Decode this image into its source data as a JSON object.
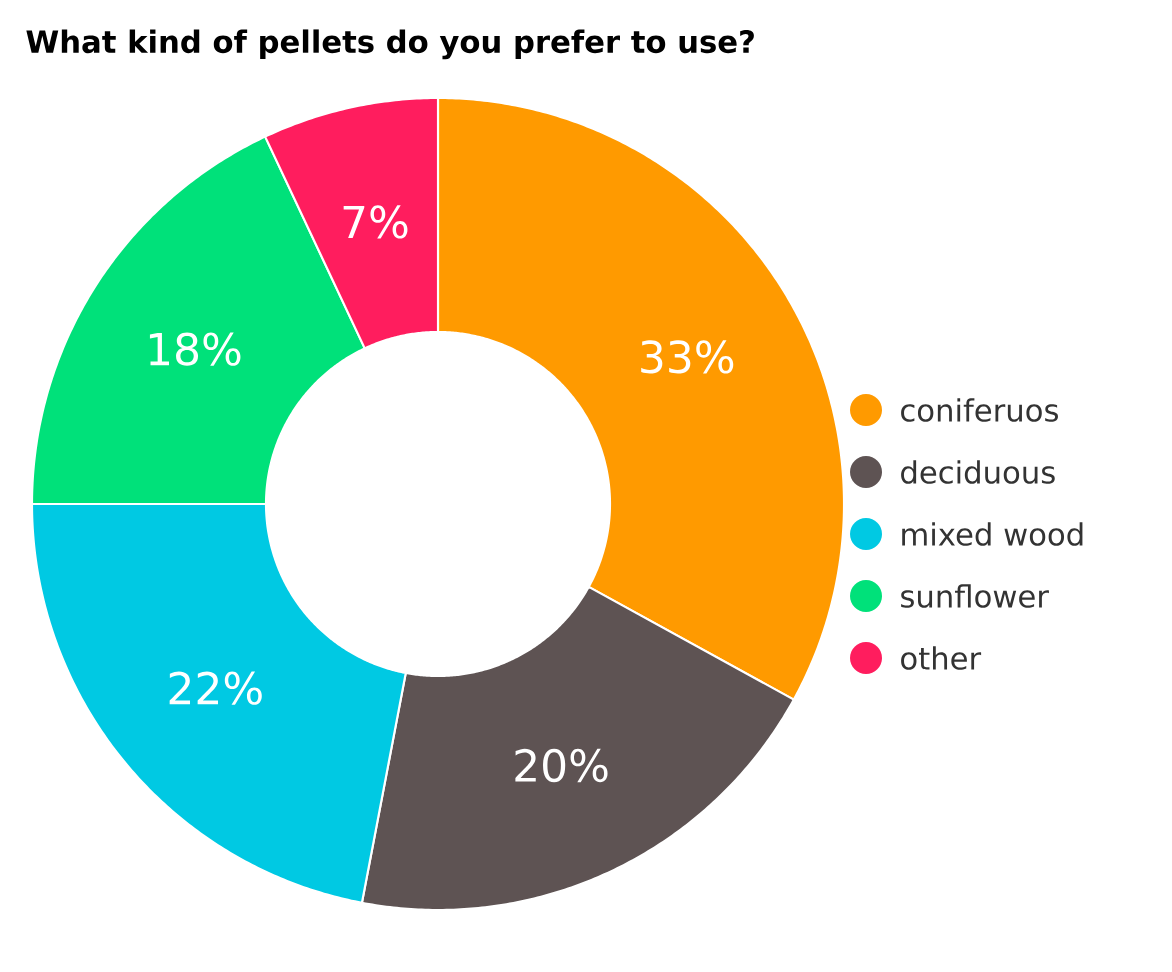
{
  "chart_data": {
    "type": "donut",
    "title": "What kind of pellets do you prefer to use?",
    "categories": [
      "coniferuos",
      "deciduous",
      "mixed wood",
      "sunflower",
      "other"
    ],
    "values": [
      33,
      20,
      22,
      18,
      7
    ],
    "colors": [
      "#ff9a00",
      "#5e5353",
      "#00c9e3",
      "#00e17a",
      "#ff1d5e"
    ],
    "value_labels": [
      "33%",
      "20%",
      "22%",
      "18%",
      "7%"
    ],
    "legend": "right"
  }
}
